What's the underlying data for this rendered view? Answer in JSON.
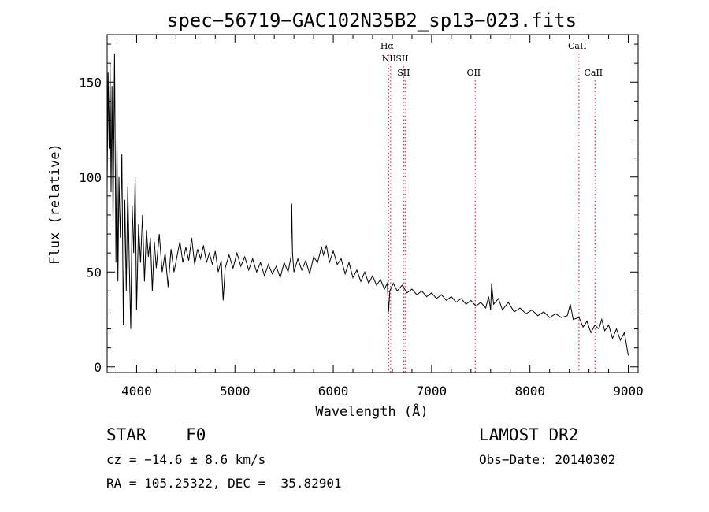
{
  "chart_data": {
    "type": "line",
    "title": "spec−56719−GAC102N35B2_sp13−023.fits",
    "xlabel": "Wavelength (Å)",
    "ylabel": "Flux (relative)",
    "xlim": [
      3700,
      9100
    ],
    "ylim": [
      -3,
      175
    ],
    "x_ticks": [
      4000,
      5000,
      6000,
      7000,
      8000,
      9000
    ],
    "y_ticks": [
      0,
      50,
      100,
      150
    ],
    "grid": false,
    "series": [
      {
        "points": [
          [
            3700,
            95
          ],
          [
            3710,
            155
          ],
          [
            3720,
            115
          ],
          [
            3730,
            160
          ],
          [
            3740,
            92
          ],
          [
            3750,
            148
          ],
          [
            3760,
            75
          ],
          [
            3775,
            165
          ],
          [
            3790,
            55
          ],
          [
            3800,
            120
          ],
          [
            3810,
            45
          ],
          [
            3820,
            100
          ],
          [
            3835,
            68
          ],
          [
            3850,
            112
          ],
          [
            3865,
            22
          ],
          [
            3880,
            88
          ],
          [
            3895,
            40
          ],
          [
            3910,
            95
          ],
          [
            3925,
            55
          ],
          [
            3940,
            20
          ],
          [
            3955,
            85
          ],
          [
            3970,
            60
          ],
          [
            3985,
            100
          ],
          [
            4000,
            30
          ],
          [
            4020,
            75
          ],
          [
            4040,
            55
          ],
          [
            4060,
            80
          ],
          [
            4080,
            45
          ],
          [
            4100,
            72
          ],
          [
            4120,
            58
          ],
          [
            4140,
            68
          ],
          [
            4160,
            40
          ],
          [
            4180,
            66
          ],
          [
            4200,
            52
          ],
          [
            4230,
            70
          ],
          [
            4260,
            50
          ],
          [
            4290,
            60
          ],
          [
            4320,
            42
          ],
          [
            4350,
            62
          ],
          [
            4380,
            50
          ],
          [
            4410,
            58
          ],
          [
            4440,
            66
          ],
          [
            4470,
            55
          ],
          [
            4500,
            63
          ],
          [
            4530,
            56
          ],
          [
            4560,
            68
          ],
          [
            4590,
            54
          ],
          [
            4620,
            62
          ],
          [
            4650,
            57
          ],
          [
            4680,
            64
          ],
          [
            4710,
            55
          ],
          [
            4740,
            60
          ],
          [
            4770,
            54
          ],
          [
            4800,
            61
          ],
          [
            4830,
            50
          ],
          [
            4860,
            56
          ],
          [
            4880,
            35
          ],
          [
            4900,
            52
          ],
          [
            4940,
            59
          ],
          [
            4980,
            52
          ],
          [
            5020,
            60
          ],
          [
            5060,
            53
          ],
          [
            5100,
            58
          ],
          [
            5140,
            51
          ],
          [
            5180,
            57
          ],
          [
            5220,
            50
          ],
          [
            5260,
            55
          ],
          [
            5300,
            48
          ],
          [
            5340,
            54
          ],
          [
            5380,
            49
          ],
          [
            5420,
            53
          ],
          [
            5460,
            47
          ],
          [
            5500,
            55
          ],
          [
            5540,
            50
          ],
          [
            5570,
            58
          ],
          [
            5577,
            86
          ],
          [
            5585,
            60
          ],
          [
            5600,
            50
          ],
          [
            5640,
            57
          ],
          [
            5680,
            51
          ],
          [
            5720,
            56
          ],
          [
            5760,
            49
          ],
          [
            5800,
            58
          ],
          [
            5840,
            55
          ],
          [
            5880,
            63
          ],
          [
            5900,
            59
          ],
          [
            5930,
            64
          ],
          [
            5960,
            55
          ],
          [
            6000,
            61
          ],
          [
            6040,
            54
          ],
          [
            6080,
            57
          ],
          [
            6120,
            49
          ],
          [
            6160,
            55
          ],
          [
            6200,
            47
          ],
          [
            6240,
            51
          ],
          [
            6280,
            45
          ],
          [
            6320,
            50
          ],
          [
            6360,
            44
          ],
          [
            6400,
            48
          ],
          [
            6440,
            43
          ],
          [
            6480,
            46
          ],
          [
            6520,
            41
          ],
          [
            6550,
            44
          ],
          [
            6563,
            29
          ],
          [
            6575,
            40
          ],
          [
            6610,
            44
          ],
          [
            6650,
            40
          ],
          [
            6700,
            43
          ],
          [
            6750,
            39
          ],
          [
            6800,
            41
          ],
          [
            6850,
            38
          ],
          [
            6900,
            40
          ],
          [
            6950,
            37
          ],
          [
            7000,
            39
          ],
          [
            7050,
            36
          ],
          [
            7100,
            38
          ],
          [
            7150,
            35
          ],
          [
            7200,
            37
          ],
          [
            7250,
            34
          ],
          [
            7300,
            36
          ],
          [
            7350,
            33
          ],
          [
            7400,
            35
          ],
          [
            7450,
            32
          ],
          [
            7500,
            34
          ],
          [
            7550,
            31
          ],
          [
            7580,
            37
          ],
          [
            7600,
            30
          ],
          [
            7610,
            44
          ],
          [
            7630,
            33
          ],
          [
            7680,
            36
          ],
          [
            7720,
            30
          ],
          [
            7780,
            34
          ],
          [
            7840,
            29
          ],
          [
            7900,
            31
          ],
          [
            7960,
            28
          ],
          [
            8020,
            30
          ],
          [
            8080,
            27
          ],
          [
            8140,
            29
          ],
          [
            8200,
            26
          ],
          [
            8260,
            28
          ],
          [
            8320,
            26
          ],
          [
            8380,
            27
          ],
          [
            8410,
            33
          ],
          [
            8440,
            25
          ],
          [
            8500,
            26
          ],
          [
            8540,
            21
          ],
          [
            8580,
            24
          ],
          [
            8620,
            18
          ],
          [
            8660,
            22
          ],
          [
            8700,
            20
          ],
          [
            8730,
            25
          ],
          [
            8760,
            19
          ],
          [
            8800,
            22
          ],
          [
            8840,
            15
          ],
          [
            8880,
            20
          ],
          [
            8920,
            14
          ],
          [
            8960,
            18
          ],
          [
            8990,
            9
          ],
          [
            9000,
            6
          ]
        ]
      }
    ],
    "line_markers": [
      {
        "wavelength": 6563,
        "label": "Hα",
        "row": 0
      },
      {
        "wavelength": 6583,
        "label": "NII",
        "row": 1
      },
      {
        "wavelength": 6716,
        "label": "SII",
        "row": 1
      },
      {
        "wavelength": 6731,
        "label": "SII",
        "row": 2
      },
      {
        "wavelength": 7444,
        "label": "OII",
        "row": 2
      },
      {
        "wavelength": 8498,
        "label": "CaII",
        "row": 0
      },
      {
        "wavelength": 8662,
        "label": "CaII",
        "row": 2
      }
    ],
    "marker_color": "#e8304a",
    "line_color": "#000000"
  },
  "info": {
    "object": "STAR    F0",
    "survey": "LAMOST DR2",
    "cz": "cz = −14.6 ± 8.6 km/s",
    "obs_date": "Obs−Date: 20140302",
    "radec": "RA = 105.25322, DEC =  35.82901"
  }
}
